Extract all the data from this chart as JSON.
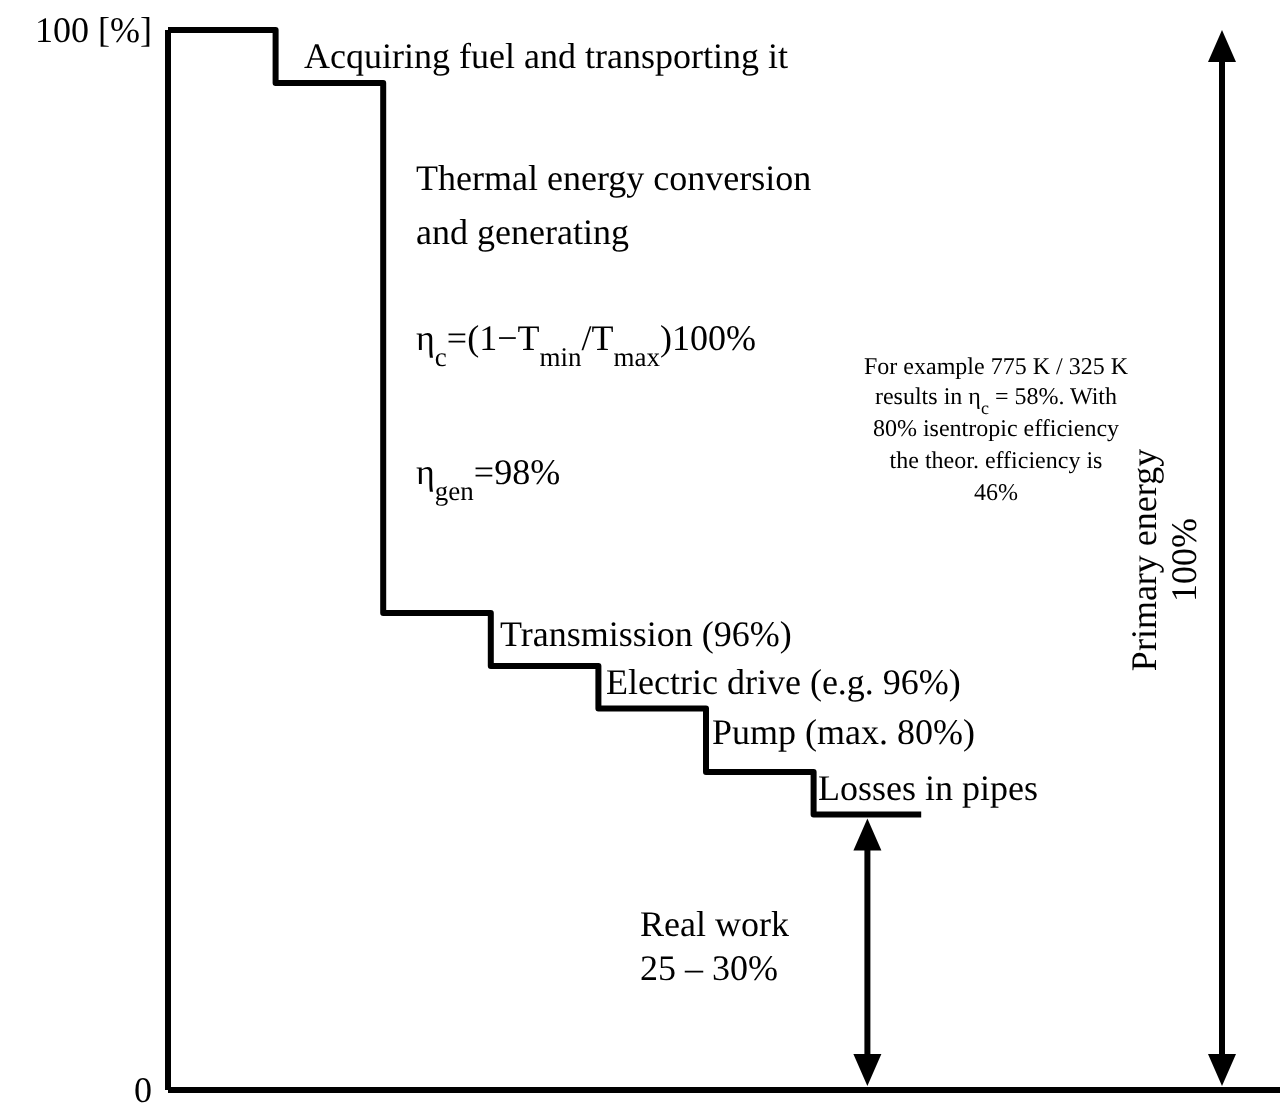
{
  "chart_data": {
    "type": "step",
    "categories": [
      null,
      null,
      null,
      null,
      null,
      null,
      null,
      null
    ],
    "values": [
      100,
      95,
      45,
      40,
      36,
      30,
      26,
      26
    ],
    "color": "#000000",
    "ylim": [
      0,
      100
    ],
    "yticks": [
      0,
      {
        "value": 100,
        "label": "100 [%]"
      }
    ],
    "annotations": [
      "Acquiring fuel and transporting it",
      "Thermal energy conversion",
      "and generating",
      "η$_{c}$=(1−T$_{min}$/T$_{max}$)100%",
      "η$_{gen}$=98%",
      "Transmission (96%)",
      "Electric drive (e.g. 96%)",
      "Pump (max. 80%)",
      "Losses in pipes",
      "Real work",
      "25 – 30%",
      "Primary energy",
      "100%",
      "For example 775 K / 325 K",
      "results in η$_{c}$ = 58%. With",
      "80% isentropic efficiency",
      "the theor. efficiency is",
      "46%"
    ]
  }
}
